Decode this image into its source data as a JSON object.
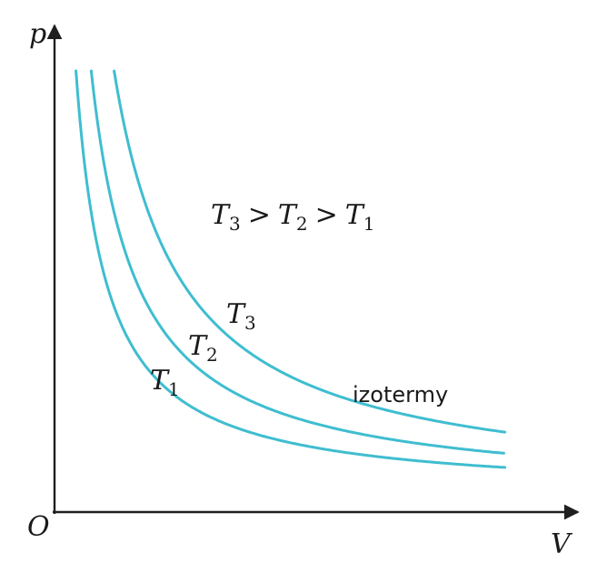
{
  "axes": {
    "y_label": "p",
    "x_label": "V",
    "origin_label": "O"
  },
  "relation": {
    "parts": [
      {
        "sym": "T",
        "sub": "3"
      },
      {
        "op": ">"
      },
      {
        "sym": "T",
        "sub": "2"
      },
      {
        "op": ">"
      },
      {
        "sym": "T",
        "sub": "1"
      }
    ]
  },
  "curves": [
    {
      "sym": "T",
      "sub": "1",
      "pV_constant": 1.0
    },
    {
      "sym": "T",
      "sub": "2",
      "pV_constant": 1.5
    },
    {
      "sym": "T",
      "sub": "3",
      "pV_constant": 2.25
    }
  ],
  "caption": "izotermy",
  "colors": {
    "curve": "#3fbdd0",
    "axis": "#1f1f1f",
    "text": "#1a1a1a"
  }
}
